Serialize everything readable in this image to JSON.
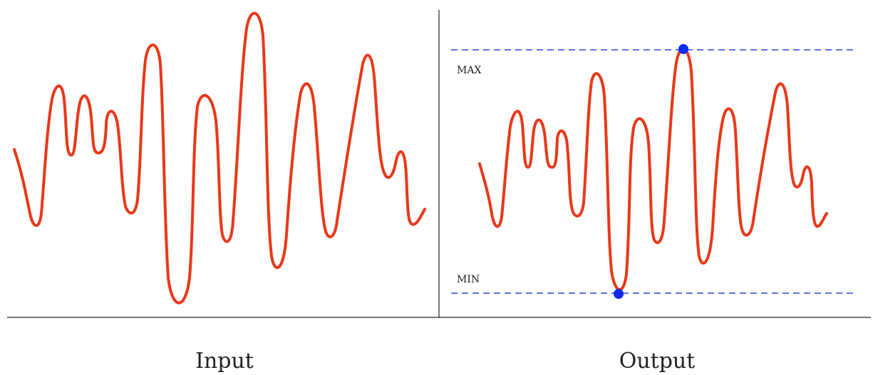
{
  "panels": {
    "input": {
      "caption": "Input"
    },
    "output": {
      "caption": "Output",
      "max_label": "MAX",
      "min_label": "MIN"
    }
  },
  "colors": {
    "signal": "#e8381a",
    "threshold_line": "#2a45d6",
    "extremum_marker": "#0b2cf0",
    "axis": "#222222"
  }
}
